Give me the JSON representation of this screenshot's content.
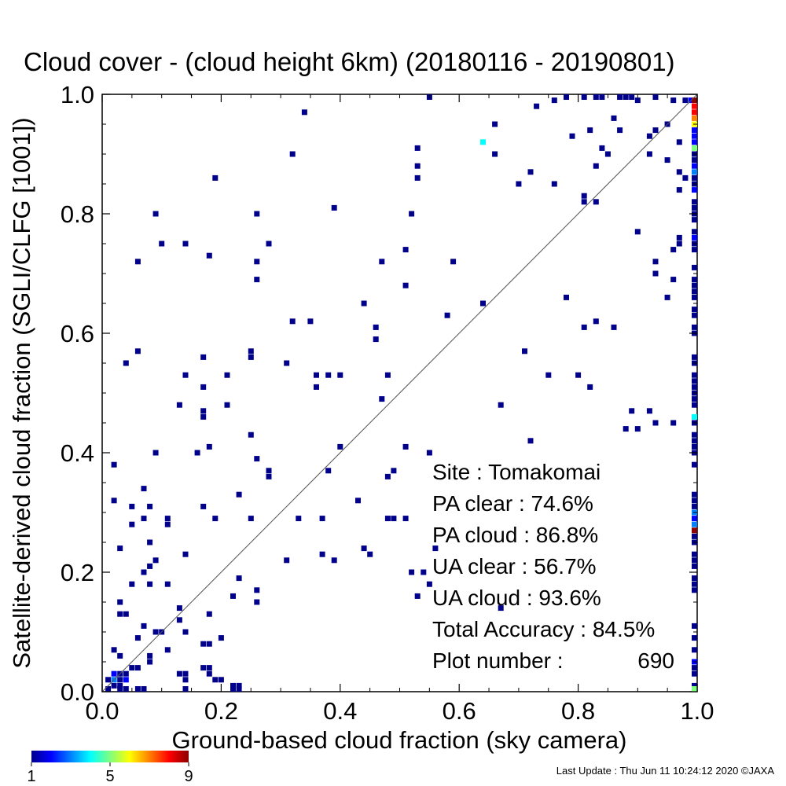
{
  "chart_data": {
    "type": "heatmap",
    "title": "Cloud cover - (cloud height 6km)  (20180116 - 20190801)",
    "xlabel": "Ground-based cloud fraction (sky camera)",
    "ylabel": "Satellite-derived cloud fraction (SGLI/CLFG [1001])",
    "xlim": [
      0.0,
      1.0
    ],
    "ylim": [
      0.0,
      1.0
    ],
    "x_ticks": [
      "0.0",
      "0.2",
      "0.4",
      "0.6",
      "0.8",
      "1.0"
    ],
    "y_ticks": [
      "0.0",
      "0.2",
      "0.4",
      "0.6",
      "0.8",
      "1.0"
    ],
    "reference_line": "y = x",
    "colorbar": {
      "min": 1,
      "max": 9,
      "tick_labels": [
        "1",
        "5",
        "9"
      ],
      "colors": [
        "#00008b",
        "#0000ff",
        "#0080ff",
        "#00ffff",
        "#7fff7f",
        "#ffff00",
        "#ff8000",
        "#ff0000",
        "#8b0000"
      ]
    },
    "points": [
      [
        0.55,
        1.0,
        1
      ],
      [
        0.76,
        0.99,
        1
      ],
      [
        0.78,
        1.0,
        1
      ],
      [
        0.81,
        1.0,
        1
      ],
      [
        0.83,
        1.0,
        1
      ],
      [
        0.84,
        1.0,
        1
      ],
      [
        0.87,
        1.0,
        1
      ],
      [
        0.88,
        1.0,
        1
      ],
      [
        0.89,
        1.0,
        1
      ],
      [
        0.9,
        0.99,
        1
      ],
      [
        0.93,
        1.0,
        1
      ],
      [
        0.96,
        0.99,
        1
      ],
      [
        0.99,
        0.99,
        2
      ],
      [
        0.34,
        0.97,
        1
      ],
      [
        0.66,
        0.95,
        1
      ],
      [
        0.73,
        0.98,
        1
      ],
      [
        0.82,
        0.94,
        1
      ],
      [
        0.86,
        0.96,
        1
      ],
      [
        0.87,
        0.94,
        1
      ],
      [
        0.93,
        0.94,
        1
      ],
      [
        0.95,
        0.95,
        1
      ],
      [
        0.98,
        0.99,
        1
      ],
      [
        0.64,
        0.92,
        4
      ],
      [
        0.79,
        0.93,
        1
      ],
      [
        0.84,
        0.91,
        1
      ],
      [
        0.85,
        0.9,
        1
      ],
      [
        0.92,
        0.93,
        1
      ],
      [
        0.97,
        0.92,
        1
      ],
      [
        0.32,
        0.9,
        1
      ],
      [
        0.53,
        0.91,
        1
      ],
      [
        0.53,
        0.88,
        1
      ],
      [
        0.53,
        0.86,
        1
      ],
      [
        0.66,
        0.9,
        1
      ],
      [
        0.72,
        0.87,
        1
      ],
      [
        0.83,
        0.88,
        1
      ],
      [
        0.92,
        0.9,
        1
      ],
      [
        0.95,
        0.89,
        1
      ],
      [
        0.97,
        0.87,
        1
      ],
      [
        0.98,
        0.86,
        1
      ],
      [
        0.19,
        0.86,
        1
      ],
      [
        0.7,
        0.85,
        1
      ],
      [
        0.76,
        0.85,
        1
      ],
      [
        0.81,
        0.83,
        1
      ],
      [
        0.97,
        0.84,
        1
      ],
      [
        0.09,
        0.8,
        1
      ],
      [
        0.26,
        0.8,
        1
      ],
      [
        0.39,
        0.81,
        1
      ],
      [
        0.52,
        0.8,
        1
      ],
      [
        0.81,
        0.82,
        1
      ],
      [
        0.83,
        0.82,
        1
      ],
      [
        0.1,
        0.75,
        1
      ],
      [
        0.14,
        0.75,
        1
      ],
      [
        0.28,
        0.75,
        1
      ],
      [
        0.51,
        0.74,
        1
      ],
      [
        0.9,
        0.77,
        1
      ],
      [
        0.97,
        0.76,
        1
      ],
      [
        0.97,
        0.75,
        1
      ],
      [
        0.96,
        0.74,
        1
      ],
      [
        0.06,
        0.72,
        1
      ],
      [
        0.18,
        0.73,
        1
      ],
      [
        0.26,
        0.72,
        1
      ],
      [
        0.47,
        0.72,
        1
      ],
      [
        0.59,
        0.72,
        1
      ],
      [
        0.93,
        0.72,
        1
      ],
      [
        0.93,
        0.7,
        1
      ],
      [
        0.96,
        0.69,
        1
      ],
      [
        0.26,
        0.69,
        1
      ],
      [
        0.51,
        0.68,
        1
      ],
      [
        0.78,
        0.66,
        1
      ],
      [
        0.95,
        0.66,
        1
      ],
      [
        0.44,
        0.65,
        1
      ],
      [
        0.64,
        0.65,
        1
      ],
      [
        0.58,
        0.63,
        1
      ],
      [
        0.32,
        0.62,
        1
      ],
      [
        0.35,
        0.62,
        1
      ],
      [
        0.81,
        0.61,
        1
      ],
      [
        0.83,
        0.62,
        1
      ],
      [
        0.86,
        0.61,
        1
      ],
      [
        0.46,
        0.61,
        1
      ],
      [
        0.46,
        0.59,
        1
      ],
      [
        0.06,
        0.57,
        1
      ],
      [
        0.04,
        0.55,
        1
      ],
      [
        0.25,
        0.56,
        1
      ],
      [
        0.25,
        0.57,
        1
      ],
      [
        0.17,
        0.56,
        1
      ],
      [
        0.31,
        0.55,
        1
      ],
      [
        0.71,
        0.57,
        1
      ],
      [
        0.14,
        0.53,
        1
      ],
      [
        0.21,
        0.53,
        1
      ],
      [
        0.36,
        0.53,
        1
      ],
      [
        0.38,
        0.53,
        1
      ],
      [
        0.4,
        0.53,
        1
      ],
      [
        0.48,
        0.53,
        1
      ],
      [
        0.75,
        0.53,
        1
      ],
      [
        0.8,
        0.53,
        1
      ],
      [
        0.17,
        0.51,
        1
      ],
      [
        0.36,
        0.51,
        1
      ],
      [
        0.82,
        0.51,
        1
      ],
      [
        0.47,
        0.49,
        1
      ],
      [
        0.13,
        0.48,
        1
      ],
      [
        0.17,
        0.47,
        1
      ],
      [
        0.17,
        0.46,
        1
      ],
      [
        0.21,
        0.48,
        1
      ],
      [
        0.67,
        0.48,
        1
      ],
      [
        0.89,
        0.47,
        1
      ],
      [
        0.92,
        0.47,
        1
      ],
      [
        0.93,
        0.45,
        1
      ],
      [
        0.96,
        0.45,
        1
      ],
      [
        0.88,
        0.44,
        1
      ],
      [
        0.9,
        0.44,
        1
      ],
      [
        0.25,
        0.43,
        1
      ],
      [
        0.72,
        0.42,
        1
      ],
      [
        0.09,
        0.4,
        1
      ],
      [
        0.16,
        0.4,
        1
      ],
      [
        0.18,
        0.41,
        1
      ],
      [
        0.26,
        0.39,
        1
      ],
      [
        0.4,
        0.41,
        1
      ],
      [
        0.51,
        0.41,
        1
      ],
      [
        0.55,
        0.4,
        1
      ],
      [
        0.02,
        0.38,
        1
      ],
      [
        0.28,
        0.37,
        1
      ],
      [
        0.28,
        0.36,
        1
      ],
      [
        0.38,
        0.37,
        1
      ],
      [
        0.48,
        0.36,
        1
      ],
      [
        0.49,
        0.37,
        1
      ],
      [
        0.07,
        0.34,
        1
      ],
      [
        0.23,
        0.33,
        1
      ],
      [
        0.02,
        0.32,
        1
      ],
      [
        0.05,
        0.31,
        1
      ],
      [
        0.08,
        0.31,
        1
      ],
      [
        0.17,
        0.31,
        1
      ],
      [
        0.43,
        0.32,
        1
      ],
      [
        0.05,
        0.28,
        1
      ],
      [
        0.07,
        0.29,
        1
      ],
      [
        0.11,
        0.29,
        1
      ],
      [
        0.11,
        0.28,
        1
      ],
      [
        0.19,
        0.29,
        1
      ],
      [
        0.25,
        0.29,
        1
      ],
      [
        0.33,
        0.29,
        1
      ],
      [
        0.37,
        0.29,
        1
      ],
      [
        0.48,
        0.29,
        1
      ],
      [
        0.49,
        0.29,
        1
      ],
      [
        0.51,
        0.29,
        1
      ],
      [
        0.08,
        0.25,
        1
      ],
      [
        0.03,
        0.24,
        1
      ],
      [
        0.14,
        0.23,
        1
      ],
      [
        0.37,
        0.23,
        1
      ],
      [
        0.39,
        0.22,
        1
      ],
      [
        0.31,
        0.22,
        1
      ],
      [
        0.44,
        0.24,
        1
      ],
      [
        0.45,
        0.23,
        1
      ],
      [
        0.56,
        0.24,
        1
      ],
      [
        0.08,
        0.21,
        1
      ],
      [
        0.09,
        0.22,
        1
      ],
      [
        0.07,
        0.2,
        1
      ],
      [
        0.23,
        0.19,
        1
      ],
      [
        0.52,
        0.2,
        1
      ],
      [
        0.54,
        0.2,
        1
      ],
      [
        0.05,
        0.18,
        1
      ],
      [
        0.08,
        0.18,
        1
      ],
      [
        0.11,
        0.18,
        1
      ],
      [
        0.22,
        0.16,
        1
      ],
      [
        0.26,
        0.17,
        1
      ],
      [
        0.53,
        0.16,
        1
      ],
      [
        0.55,
        0.18,
        1
      ],
      [
        0.03,
        0.15,
        1
      ],
      [
        0.03,
        0.13,
        1
      ],
      [
        0.04,
        0.13,
        1
      ],
      [
        0.13,
        0.14,
        1
      ],
      [
        0.13,
        0.12,
        1
      ],
      [
        0.26,
        0.15,
        1
      ],
      [
        0.18,
        0.13,
        1
      ],
      [
        0.67,
        0.14,
        1
      ],
      [
        0.07,
        0.11,
        1
      ],
      [
        0.09,
        0.1,
        1
      ],
      [
        0.1,
        0.1,
        1
      ],
      [
        0.14,
        0.1,
        1
      ],
      [
        0.06,
        0.09,
        1
      ],
      [
        0.17,
        0.08,
        1
      ],
      [
        0.18,
        0.08,
        1
      ],
      [
        0.2,
        0.09,
        1
      ],
      [
        0.11,
        0.07,
        1
      ],
      [
        0.02,
        0.07,
        1
      ],
      [
        0.03,
        0.06,
        1
      ],
      [
        0.08,
        0.06,
        1
      ],
      [
        0.08,
        0.05,
        1
      ],
      [
        0.05,
        0.04,
        1
      ],
      [
        0.06,
        0.04,
        1
      ],
      [
        0.17,
        0.04,
        1
      ],
      [
        0.18,
        0.04,
        1
      ],
      [
        0.02,
        0.03,
        2
      ],
      [
        0.03,
        0.03,
        1
      ],
      [
        0.04,
        0.03,
        1
      ],
      [
        0.13,
        0.03,
        1
      ],
      [
        0.14,
        0.03,
        1
      ],
      [
        0.18,
        0.03,
        1
      ],
      [
        0.01,
        0.02,
        1
      ],
      [
        0.02,
        0.02,
        3
      ],
      [
        0.03,
        0.02,
        1
      ],
      [
        0.04,
        0.02,
        2
      ],
      [
        0.02,
        0.01,
        1
      ],
      [
        0.03,
        0.01,
        1
      ],
      [
        0.14,
        0.02,
        1
      ],
      [
        0.19,
        0.02,
        1
      ],
      [
        0.2,
        0.02,
        1
      ],
      [
        0.22,
        0.01,
        1
      ],
      [
        0.23,
        0.01,
        1
      ],
      [
        0.01,
        0.0,
        1
      ],
      [
        0.03,
        0.0,
        1
      ],
      [
        0.04,
        0.0,
        1
      ],
      [
        0.06,
        0.0,
        1
      ],
      [
        0.07,
        0.0,
        1
      ],
      [
        0.14,
        0.0,
        1
      ],
      [
        0.22,
        0.0,
        1
      ],
      [
        0.23,
        0.0,
        1
      ],
      [
        1.0,
        0.99,
        9
      ],
      [
        1.0,
        0.98,
        8
      ],
      [
        1.0,
        0.97,
        8
      ],
      [
        1.0,
        0.96,
        7
      ],
      [
        1.0,
        0.95,
        6
      ],
      [
        1.0,
        0.94,
        2
      ],
      [
        1.0,
        0.93,
        2
      ],
      [
        1.0,
        0.92,
        2
      ],
      [
        1.0,
        0.91,
        5
      ],
      [
        1.0,
        0.9,
        1
      ],
      [
        1.0,
        0.89,
        1
      ],
      [
        1.0,
        0.88,
        2
      ],
      [
        1.0,
        0.87,
        3
      ],
      [
        1.0,
        0.86,
        1
      ],
      [
        1.0,
        0.85,
        1
      ],
      [
        1.0,
        0.84,
        2
      ],
      [
        1.0,
        0.82,
        1
      ],
      [
        1.0,
        0.81,
        1
      ],
      [
        1.0,
        0.8,
        1
      ],
      [
        1.0,
        0.79,
        1
      ],
      [
        1.0,
        0.77,
        1
      ],
      [
        1.0,
        0.76,
        2
      ],
      [
        1.0,
        0.75,
        1
      ],
      [
        1.0,
        0.74,
        1
      ],
      [
        1.0,
        0.71,
        1
      ],
      [
        1.0,
        0.69,
        1
      ],
      [
        1.0,
        0.68,
        1
      ],
      [
        1.0,
        0.67,
        1
      ],
      [
        1.0,
        0.66,
        1
      ],
      [
        1.0,
        0.64,
        1
      ],
      [
        1.0,
        0.63,
        1
      ],
      [
        1.0,
        0.61,
        1
      ],
      [
        1.0,
        0.6,
        1
      ],
      [
        1.0,
        0.56,
        1
      ],
      [
        1.0,
        0.55,
        1
      ],
      [
        1.0,
        0.53,
        1
      ],
      [
        1.0,
        0.52,
        1
      ],
      [
        1.0,
        0.51,
        1
      ],
      [
        1.0,
        0.5,
        1
      ],
      [
        1.0,
        0.49,
        1
      ],
      [
        1.0,
        0.48,
        1
      ],
      [
        1.0,
        0.46,
        4
      ],
      [
        1.0,
        0.45,
        1
      ],
      [
        1.0,
        0.43,
        1
      ],
      [
        1.0,
        0.42,
        1
      ],
      [
        1.0,
        0.41,
        1
      ],
      [
        1.0,
        0.4,
        1
      ],
      [
        1.0,
        0.38,
        1
      ],
      [
        1.0,
        0.33,
        1
      ],
      [
        1.0,
        0.32,
        1
      ],
      [
        1.0,
        0.31,
        1
      ],
      [
        1.0,
        0.3,
        3
      ],
      [
        1.0,
        0.29,
        2
      ],
      [
        1.0,
        0.28,
        3
      ],
      [
        1.0,
        0.27,
        9
      ],
      [
        1.0,
        0.26,
        1
      ],
      [
        1.0,
        0.25,
        1
      ],
      [
        1.0,
        0.23,
        1
      ],
      [
        1.0,
        0.22,
        1
      ],
      [
        1.0,
        0.21,
        1
      ],
      [
        1.0,
        0.19,
        1
      ],
      [
        1.0,
        0.18,
        1
      ],
      [
        1.0,
        0.17,
        1
      ],
      [
        1.0,
        0.11,
        1
      ],
      [
        1.0,
        0.09,
        1
      ],
      [
        1.0,
        0.07,
        1
      ],
      [
        1.0,
        0.05,
        2
      ],
      [
        1.0,
        0.04,
        1
      ],
      [
        1.0,
        0.03,
        1
      ],
      [
        1.0,
        0.01,
        1
      ],
      [
        1.0,
        0.0,
        5
      ]
    ]
  },
  "stats": {
    "site": "Site : Tomakomai",
    "pa_clear": "PA clear :  74.6%",
    "pa_cloud": "PA cloud :  86.8%",
    "ua_clear": "UA clear :  56.7%",
    "ua_cloud": "UA cloud :  93.6%",
    "total_accuracy": "Total Accuracy :  84.5%",
    "plot_number_label": "Plot number :",
    "plot_number_value": "690"
  },
  "footer": {
    "last_update": "Last Update : Thu Jun 11 10:24:12 2020  ©JAXA"
  }
}
